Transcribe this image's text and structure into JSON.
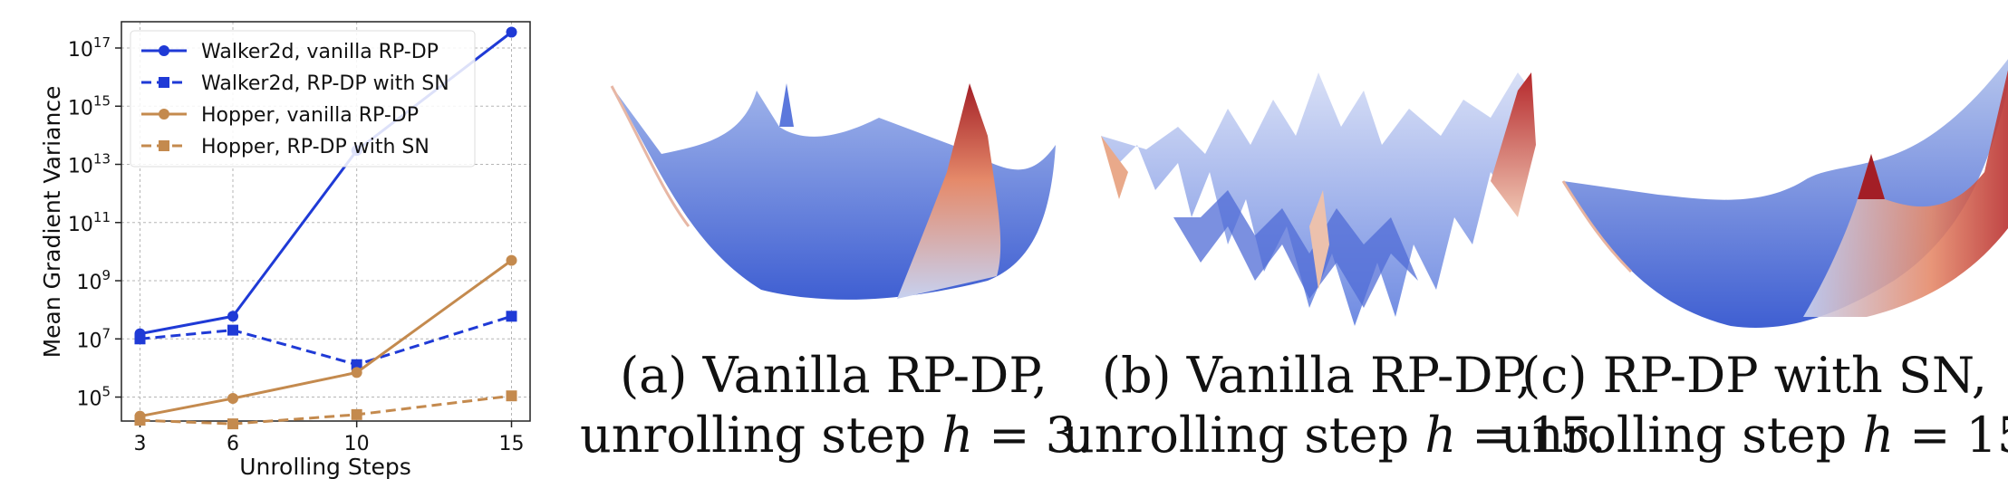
{
  "chart_data": {
    "type": "line",
    "title": "",
    "xlabel": "Unrolling Steps",
    "ylabel": "Mean Gradient Variance",
    "yscale": "log",
    "ylim": [
      15000,
      800000000000000000
    ],
    "x_ticks": [
      3,
      6,
      10,
      15
    ],
    "y_tick_labels": [
      {
        "base": "10",
        "exp": "5",
        "value": 100000
      },
      {
        "base": "10",
        "exp": "7",
        "value": 10000000
      },
      {
        "base": "10",
        "exp": "9",
        "value": 1000000000
      },
      {
        "base": "10",
        "exp": "11",
        "value": 100000000000
      },
      {
        "base": "10",
        "exp": "13",
        "value": 10000000000000
      },
      {
        "base": "10",
        "exp": "15",
        "value": 1000000000000000
      },
      {
        "base": "10",
        "exp": "17",
        "value": 100000000000000000
      }
    ],
    "grid": true,
    "legend_position": "top-left",
    "x": [
      3,
      6,
      10,
      15
    ],
    "series": [
      {
        "name": "Walker2d, vanilla RP-DP",
        "color": "#1f3ad6",
        "dash": "solid",
        "marker": "circle",
        "values": [
          15000000,
          60000000,
          30000000000000,
          350000000000000000
        ]
      },
      {
        "name": "Walker2d, RP-DP with SN",
        "color": "#1f3ad6",
        "dash": "dashed",
        "marker": "square",
        "values": [
          10000000,
          20000000,
          1300000,
          60000000
        ]
      },
      {
        "name": "Hopper, vanilla RP-DP",
        "color": "#c48a4e",
        "dash": "solid",
        "marker": "circle",
        "values": [
          22000,
          90000,
          700000,
          5000000000
        ]
      },
      {
        "name": "Hopper, RP-DP with SN",
        "color": "#c48a4e",
        "dash": "dashed",
        "marker": "square",
        "values": [
          16000,
          12000,
          25000,
          110000
        ]
      }
    ]
  },
  "captions": [
    {
      "line1": "(a) Vanilla RP-DP,",
      "line2_text": "unrolling step ",
      "line2_math": "h",
      "line2_tail": " = 3."
    },
    {
      "line1": "(b) Vanilla RP-DP,",
      "line2_text": "unrolling step ",
      "line2_math": "h",
      "line2_tail": " = 15."
    },
    {
      "line1": "(c) RP-DP with SN,",
      "line2_text": "unrolling step ",
      "line2_math": "h",
      "line2_tail": " = 15."
    }
  ],
  "colors": {
    "surface_blue": "#4a6ad8",
    "surface_light": "#b9c8ee",
    "surface_red": "#b5282b",
    "surface_peach": "#e9a98a"
  }
}
